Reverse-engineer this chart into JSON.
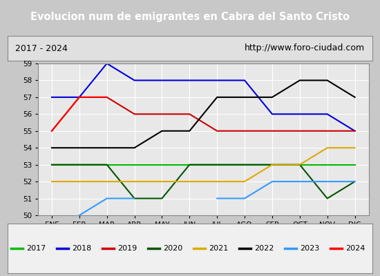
{
  "title": "Evolucion num de emigrantes en Cabra del Santo Cristo",
  "subtitle_left": "2017 - 2024",
  "subtitle_right": "http://www.foro-ciudad.com",
  "x_labels": [
    "ENE",
    "FEB",
    "MAR",
    "ABR",
    "MAY",
    "JUN",
    "JUL",
    "AGO",
    "SEP",
    "OCT",
    "NOV",
    "DIC"
  ],
  "ylim": [
    50.0,
    59.0
  ],
  "yticks": [
    50.0,
    51.0,
    52.0,
    53.0,
    54.0,
    55.0,
    56.0,
    57.0,
    58.0,
    59.0
  ],
  "series": [
    {
      "year": "2017",
      "color": "#00bb00",
      "data": [
        53,
        53,
        53,
        53,
        53,
        53,
        53,
        53,
        53,
        53,
        53,
        53
      ]
    },
    {
      "year": "2018",
      "color": "#0000dd",
      "data": [
        57,
        57,
        59,
        58,
        58,
        58,
        58,
        58,
        56,
        56,
        56,
        55
      ]
    },
    {
      "year": "2019",
      "color": "#cc0000",
      "data": [
        55,
        57,
        57,
        56,
        56,
        56,
        55,
        55,
        55,
        55,
        55,
        55
      ]
    },
    {
      "year": "2020",
      "color": "#005500",
      "data": [
        53,
        53,
        53,
        51,
        51,
        53,
        53,
        53,
        53,
        53,
        51,
        52
      ]
    },
    {
      "year": "2021",
      "color": "#ddaa00",
      "data": [
        52,
        52,
        52,
        52,
        52,
        52,
        52,
        52,
        53,
        53,
        54,
        54
      ]
    },
    {
      "year": "2022",
      "color": "#000000",
      "data": [
        54,
        54,
        54,
        54,
        55,
        55,
        57,
        57,
        57,
        58,
        58,
        57
      ]
    },
    {
      "year": "2023",
      "color": "#3399ff",
      "data": [
        null,
        50,
        51,
        51,
        null,
        null,
        51,
        51,
        52,
        52,
        52,
        52
      ]
    },
    {
      "year": "2024",
      "color": "#ff0000",
      "data": [
        55,
        57,
        57,
        null,
        null,
        null,
        null,
        null,
        null,
        null,
        null,
        null
      ]
    }
  ],
  "title_bg_color": "#3a6bc8",
  "title_text_color": "#ffffff",
  "plot_bg_color": "#e8e8e8",
  "info_bg_color": "#e0e0e0",
  "legend_bg_color": "#f0f0f0",
  "outer_bg_color": "#c8c8c8"
}
